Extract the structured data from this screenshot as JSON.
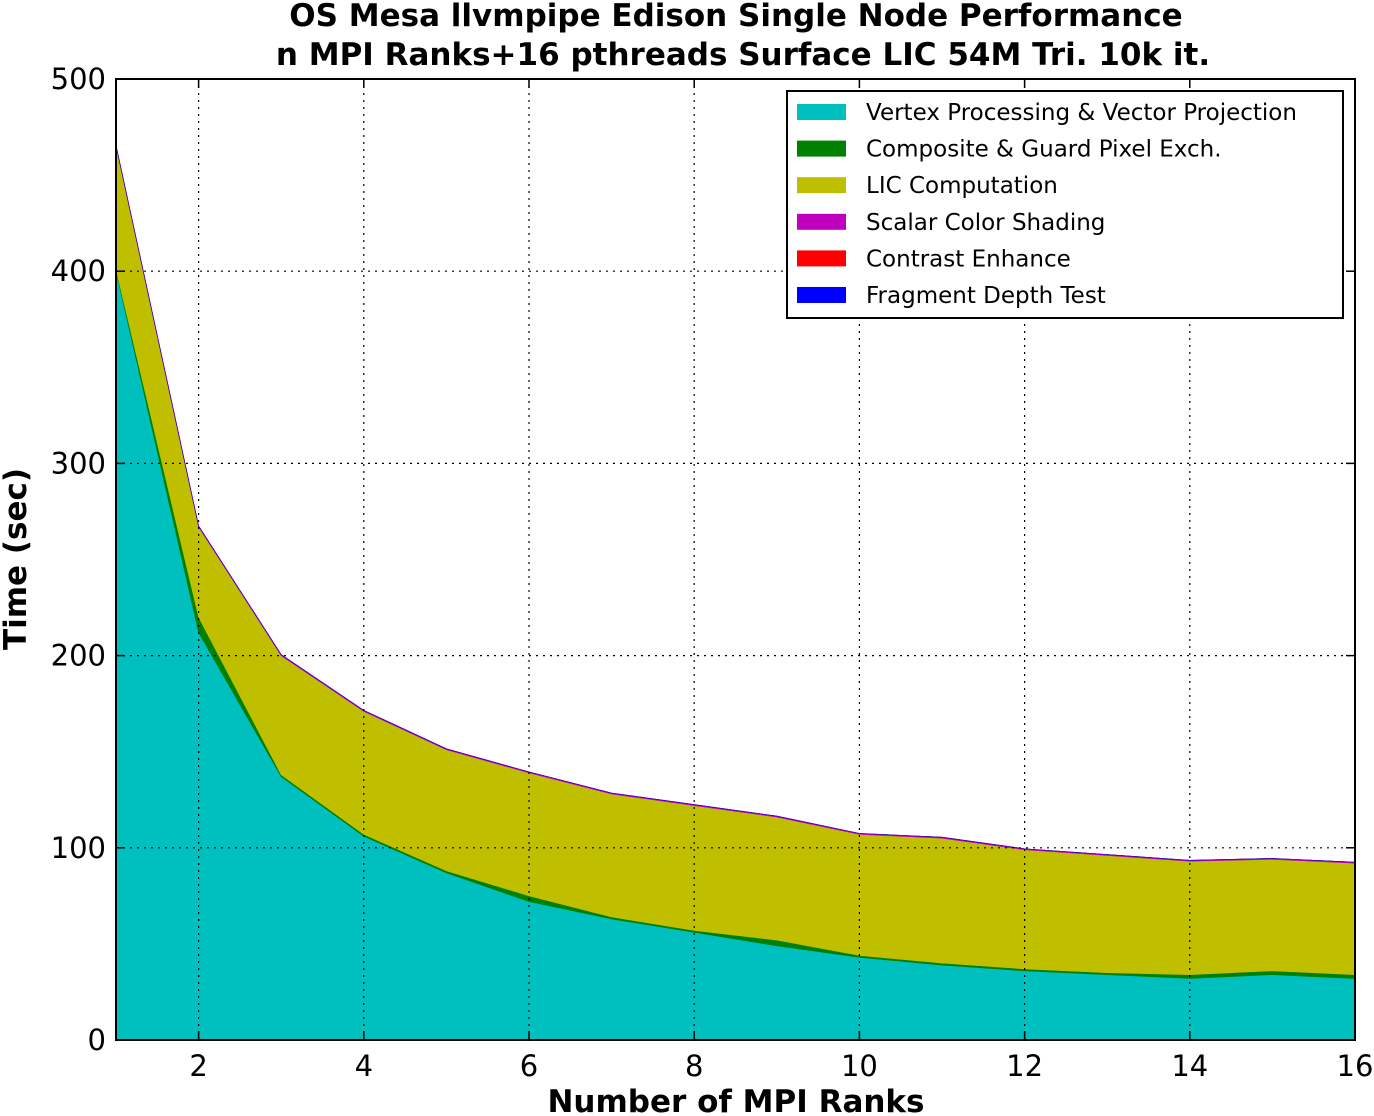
{
  "chart_data": {
    "type": "area",
    "stacked": true,
    "title": "OS Mesa llvmpipe Edison Single Node Performance",
    "subtitle": "n MPI Ranks+16 pthreads Surface LIC 54M Tri. 10k it.",
    "xlabel": "Number of MPI Ranks",
    "ylabel": "Time (sec)",
    "xlim": [
      1,
      16
    ],
    "ylim": [
      0,
      500
    ],
    "xticks": [
      2,
      4,
      6,
      8,
      10,
      12,
      14,
      16
    ],
    "yticks": [
      0,
      100,
      200,
      300,
      400,
      500
    ],
    "grid": true,
    "legend_position": "top-right",
    "x": [
      1,
      2,
      3,
      4,
      5,
      6,
      7,
      8,
      9,
      10,
      11,
      12,
      13,
      14,
      15,
      16
    ],
    "series": [
      {
        "name": "Vertex Processing & Vector Projection",
        "color": "#00bfbf",
        "values": [
          400,
          212,
          137,
          106,
          87,
          72,
          63,
          56,
          49,
          43,
          39,
          36,
          34,
          32,
          34,
          32
        ]
      },
      {
        "name": "Composite & Guard Pixel Exch.",
        "color": "#008000",
        "values": [
          1,
          8,
          1,
          1,
          1,
          3,
          1,
          1,
          3,
          1,
          1,
          1,
          1,
          2,
          2,
          2
        ]
      },
      {
        "name": "LIC Computation",
        "color": "#bfbf00",
        "values": [
          64,
          47,
          62,
          64,
          63,
          64,
          64,
          65,
          64,
          63,
          65,
          62,
          61,
          59,
          58,
          58
        ]
      },
      {
        "name": "Scalar Color Shading",
        "color": "#bf00bf",
        "values": [
          0.5,
          0.5,
          0.5,
          0.5,
          0.5,
          0.5,
          0.5,
          0.5,
          0.5,
          0.5,
          0.5,
          0.5,
          0.5,
          0.5,
          0.5,
          0.5
        ]
      },
      {
        "name": "Contrast Enhance",
        "color": "#ff0000",
        "values": [
          0,
          0,
          0,
          0,
          0,
          0,
          0,
          0,
          0,
          0,
          0,
          0,
          0,
          0,
          0,
          0
        ]
      },
      {
        "name": "Fragment Depth Test",
        "color": "#0000ff",
        "values": [
          0,
          0,
          0,
          0,
          0,
          0,
          0,
          0,
          0,
          0,
          0,
          0,
          0,
          0,
          0,
          0
        ]
      }
    ]
  }
}
